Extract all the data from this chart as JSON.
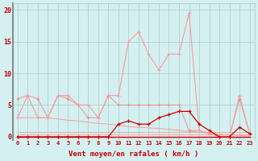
{
  "x": [
    0,
    1,
    2,
    3,
    4,
    5,
    6,
    7,
    8,
    9,
    10,
    11,
    12,
    13,
    14,
    15,
    16,
    17,
    18,
    19,
    20,
    21,
    22,
    23
  ],
  "rafales_y": [
    3,
    6.5,
    3,
    3,
    6.5,
    6.5,
    5,
    5,
    3,
    6.5,
    6.5,
    15,
    16.5,
    13,
    10.5,
    13,
    13,
    19.5,
    1,
    0.5,
    0,
    0,
    6.5,
    0.5
  ],
  "moyen_flat_y": [
    6,
    6.5,
    6,
    3,
    6.5,
    6,
    5,
    3,
    3,
    6.5,
    5,
    5,
    5,
    5,
    5,
    5,
    5,
    1,
    1,
    0.5,
    0,
    0,
    6,
    0.5
  ],
  "trend_y": [
    3,
    3,
    3,
    3,
    2.8,
    2.6,
    2.5,
    2.3,
    2.1,
    2.0,
    1.8,
    1.6,
    1.5,
    1.4,
    1.3,
    1.2,
    1.0,
    0.9,
    0.7,
    0.6,
    0.4,
    0.3,
    0.2,
    0.1
  ],
  "darkred_y": [
    0,
    0,
    0,
    0,
    0,
    0,
    0,
    0,
    0,
    0,
    2,
    2.5,
    2,
    2,
    3,
    3.5,
    4,
    4,
    2,
    1,
    0,
    0,
    1.5,
    0.5
  ],
  "zero_y": [
    0,
    0,
    0,
    0,
    0,
    0,
    0,
    0,
    0,
    0,
    0,
    0,
    0,
    0,
    0,
    0,
    0,
    0,
    0,
    0,
    0,
    0,
    0,
    0
  ],
  "flat1_y": [
    0.4,
    0.4,
    0.4,
    0.4,
    0.4,
    0.4,
    0.4,
    0.4,
    0.4,
    0.4,
    0.4,
    0.4,
    0.4,
    0.4,
    0.4,
    0.4,
    0.4,
    0.4,
    0.4,
    0.4,
    0.4,
    0.4,
    0.4,
    0.4
  ],
  "flat2_y": [
    0.8,
    0.8,
    0.8,
    0.8,
    0.8,
    0.8,
    0.8,
    0.8,
    0.8,
    0.8,
    0.8,
    0.8,
    0.8,
    0.8,
    0.8,
    0.8,
    0.8,
    0.8,
    0.8,
    0.8,
    0.8,
    0.8,
    0.8,
    0.8
  ],
  "color_light": "#FF9999",
  "color_dark": "#CC0000",
  "color_medium": "#FF7777",
  "bg_color": "#D4F0F0",
  "grid_color": "#AACCCC",
  "ylabel_vals": [
    0,
    5,
    10,
    15,
    20
  ],
  "xlabel": "Vent moyen/en rafales ( km/h )",
  "ylim": [
    -0.5,
    21
  ],
  "xlim": [
    -0.5,
    23.5
  ]
}
